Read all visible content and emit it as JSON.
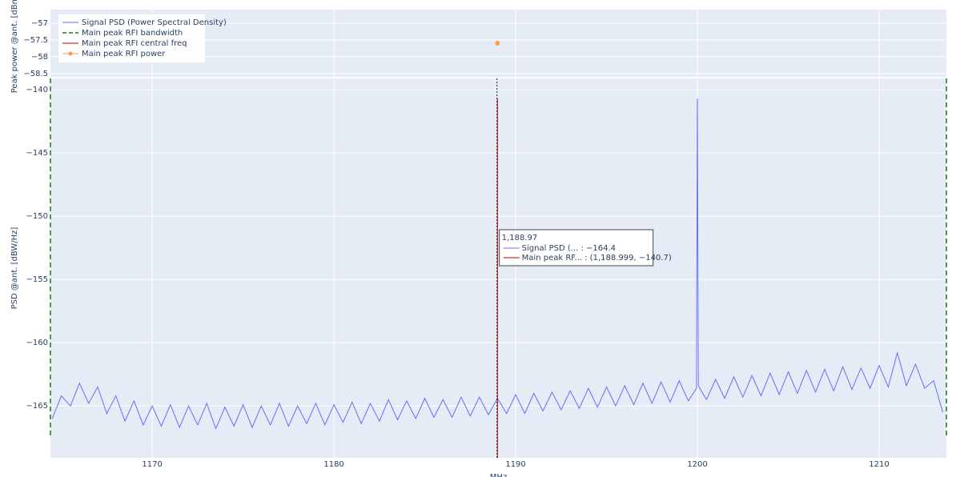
{
  "chart_data": [
    {
      "type": "scatter",
      "y_label": "Peak power @ant. [dBm]",
      "xlim": [
        1164.4,
        1213.7
      ],
      "ylim": [
        -58.6,
        -56.6
      ],
      "yticks": [
        {
          "value": -57,
          "label": "−57"
        },
        {
          "value": -57.5,
          "label": "−57.5"
        },
        {
          "value": -58,
          "label": "−58"
        },
        {
          "value": -58.5,
          "label": "−58.5"
        }
      ],
      "grid": true,
      "series": [
        {
          "name": "Main peak RFI power",
          "color": "#f5a04a",
          "x": [
            1188.999
          ],
          "values": [
            -57.6
          ]
        }
      ]
    },
    {
      "type": "line",
      "x_label": "MHz",
      "y_label": "PSD @ant. [dBW/Hz]",
      "xlim": [
        1164.4,
        1213.7
      ],
      "xticks": [
        1170,
        1180,
        1190,
        1200,
        1210
      ],
      "ylim": [
        -169.1,
        -139.1
      ],
      "yticks": [
        {
          "value": -140,
          "label": "−140"
        },
        {
          "value": -145,
          "label": "−145"
        },
        {
          "value": -150,
          "label": "−150"
        },
        {
          "value": -155,
          "label": "−155"
        },
        {
          "value": -160,
          "label": "−160"
        },
        {
          "value": -165,
          "label": "−165"
        }
      ],
      "grid": true,
      "legend": "top-left",
      "series": [
        {
          "name": "Signal PSD (Power Spectral Density)",
          "color": "#636efa",
          "kind": "line",
          "x": [
            1164.5,
            1165,
            1165.5,
            1166,
            1166.5,
            1167,
            1167.5,
            1168,
            1168.5,
            1169,
            1169.5,
            1170,
            1170.5,
            1171,
            1171.5,
            1172,
            1172.5,
            1173,
            1173.5,
            1174,
            1174.5,
            1175,
            1175.5,
            1176,
            1176.5,
            1177,
            1177.5,
            1178,
            1178.5,
            1179,
            1179.5,
            1180,
            1180.5,
            1181,
            1181.5,
            1182,
            1182.5,
            1183,
            1183.5,
            1184,
            1184.5,
            1185,
            1185.5,
            1186,
            1186.5,
            1187,
            1187.5,
            1188,
            1188.5,
            1189,
            1189.5,
            1190,
            1190.5,
            1191,
            1191.5,
            1192,
            1192.5,
            1193,
            1193.5,
            1194,
            1194.5,
            1195,
            1195.5,
            1196,
            1196.5,
            1197,
            1197.5,
            1198,
            1198.5,
            1199,
            1199.5,
            1199.95,
            1200,
            1200.05,
            1200.5,
            1201,
            1201.5,
            1202,
            1202.5,
            1203,
            1203.5,
            1204,
            1204.5,
            1205,
            1205.5,
            1206,
            1206.5,
            1207,
            1207.5,
            1208,
            1208.5,
            1209,
            1209.5,
            1210,
            1210.5,
            1211,
            1211.5,
            1212,
            1212.5,
            1213,
            1213.5
          ],
          "values": [
            -166.0,
            -164.2,
            -165.0,
            -163.2,
            -164.8,
            -163.5,
            -165.6,
            -164.2,
            -166.2,
            -164.6,
            -166.5,
            -165.0,
            -166.6,
            -164.9,
            -166.7,
            -165.0,
            -166.5,
            -164.8,
            -166.8,
            -165.1,
            -166.6,
            -164.9,
            -166.7,
            -165.0,
            -166.5,
            -164.8,
            -166.6,
            -165.0,
            -166.4,
            -164.8,
            -166.5,
            -164.9,
            -166.3,
            -164.7,
            -166.4,
            -164.8,
            -166.2,
            -164.5,
            -166.1,
            -164.6,
            -166.0,
            -164.4,
            -165.9,
            -164.5,
            -165.9,
            -164.3,
            -165.8,
            -164.3,
            -165.7,
            -164.4,
            -165.6,
            -164.1,
            -165.6,
            -164.0,
            -165.4,
            -163.9,
            -165.3,
            -163.8,
            -165.2,
            -163.6,
            -165.1,
            -163.5,
            -165.0,
            -163.4,
            -164.9,
            -163.2,
            -164.8,
            -163.1,
            -164.7,
            -163.0,
            -164.6,
            -163.6,
            -140.7,
            -163.4,
            -164.5,
            -162.9,
            -164.4,
            -162.7,
            -164.3,
            -162.6,
            -164.2,
            -162.4,
            -164.1,
            -162.3,
            -164.0,
            -162.2,
            -163.9,
            -162.1,
            -163.8,
            -161.9,
            -163.7,
            -162.0,
            -163.6,
            -161.8,
            -163.5,
            -160.8,
            -163.4,
            -161.7,
            -163.6,
            -163.0,
            -165.5
          ]
        },
        {
          "name": "Main peak RFI bandwidth",
          "color": "#1a7a1a",
          "kind": "vline",
          "dash": true,
          "x": [
            1164.4,
            1213.7
          ]
        },
        {
          "name": "Main peak RFI central freq",
          "color": "#c00000",
          "kind": "stem",
          "x": [
            1188.999
          ],
          "values": [
            -140.7
          ]
        }
      ],
      "hover": {
        "x": 1188.97,
        "title": "1,188.97",
        "items": [
          "Signal PSD (... : −164.4",
          "Main peak RF... : (1,188.999, −140.7)"
        ]
      }
    }
  ]
}
